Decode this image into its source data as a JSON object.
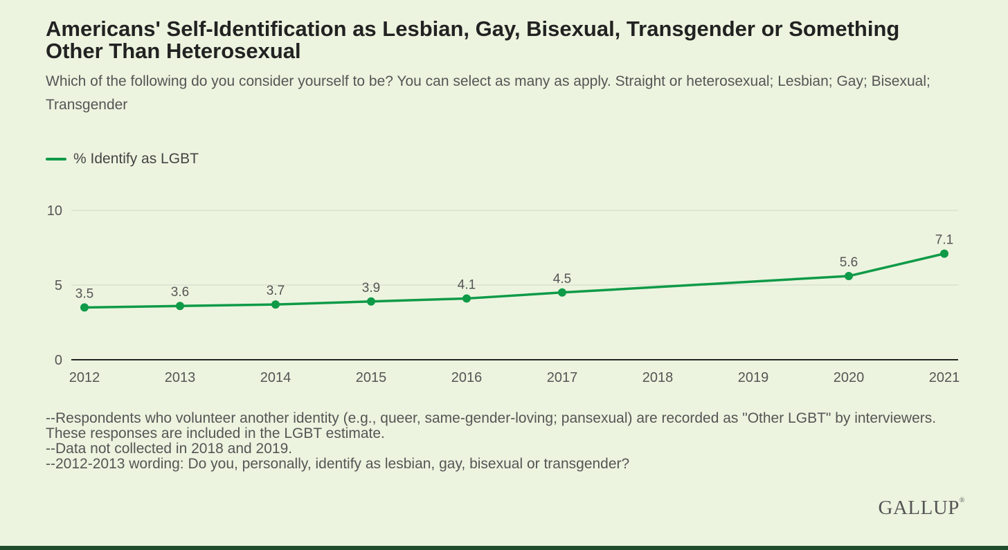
{
  "title": "Americans' Self-Identification as Lesbian, Gay, Bisexual, Transgender or Something Other Than Heterosexual",
  "subtitle": "Which of the following do you consider yourself to be? You can select as many as apply. Straight or heterosexual; Lesbian; Gay; Bisexual; Transgender",
  "colors": {
    "line": "#0f9a48",
    "background": "#ecf4df",
    "grid": "#d6dccd",
    "axis": "#222222",
    "text": "#555555"
  },
  "chart_data": {
    "type": "line",
    "title": "Americans' Self-Identification as Lesbian, Gay, Bisexual, Transgender or Something Other Than Heterosexual",
    "xlabel": "",
    "ylabel": "",
    "categories": [
      "2012",
      "2013",
      "2014",
      "2015",
      "2016",
      "2017",
      "2018",
      "2019",
      "2020",
      "2021"
    ],
    "series": [
      {
        "name": "% Identify as LGBT",
        "values": [
          3.5,
          3.6,
          3.7,
          3.9,
          4.1,
          4.5,
          null,
          null,
          5.6,
          7.1
        ],
        "labels": [
          "3.5",
          "3.6",
          "3.7",
          "3.9",
          "4.1",
          "4.5",
          null,
          null,
          "5.6",
          "7.1"
        ]
      }
    ],
    "ylim": [
      0,
      10
    ],
    "yticks": [
      0,
      5,
      10
    ],
    "yticklabels": [
      "0",
      "5",
      "10"
    ],
    "grid": true,
    "legend_position": "top-left"
  },
  "notes": [
    "--Respondents who volunteer another identity (e.g., queer, same-gender-loving; pansexual) are recorded as \"Other LGBT\" by interviewers. These responses are included in the LGBT estimate.",
    "--Data not collected in 2018 and 2019.",
    "--2012-2013 wording: Do you, personally, identify as lesbian, gay, bisexual or transgender?"
  ],
  "logo_text": "GALLUP"
}
